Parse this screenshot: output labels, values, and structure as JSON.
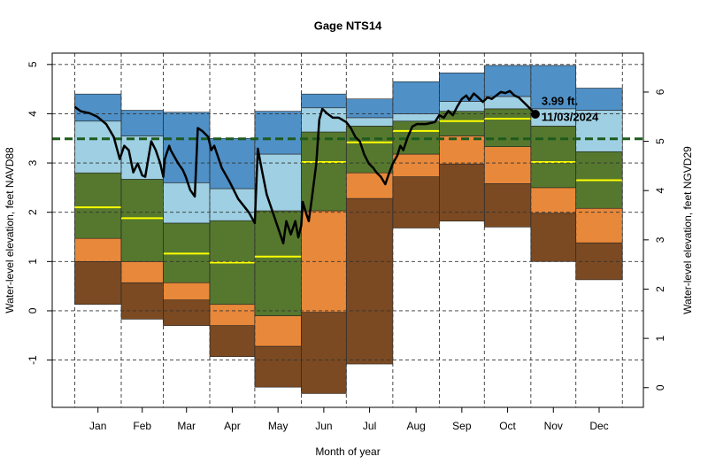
{
  "chart_data": {
    "type": "percentile-steps",
    "title": "Gage NTS14",
    "xlabel": "Month of year",
    "ylabel": "Water-level elevation, feet NAVD88",
    "y2label": "Water-level elevation, feet NGVD29",
    "categories": [
      "Jan",
      "Feb",
      "Mar",
      "Apr",
      "May",
      "Jun",
      "Jul",
      "Aug",
      "Sep",
      "Oct",
      "Nov",
      "Dec"
    ],
    "month_starts": [
      0,
      31,
      59,
      90,
      120,
      151,
      181,
      212,
      243,
      273,
      304,
      334,
      365
    ],
    "xlim": [
      -15,
      379
    ],
    "ylim": [
      -1.96,
      5.23
    ],
    "yticks": [
      -1,
      0,
      1,
      2,
      3,
      4,
      5
    ],
    "y2lim": [
      -0.4,
      6.79
    ],
    "y2ticks": [
      0,
      1,
      2,
      3,
      4,
      5,
      6
    ],
    "grid": true,
    "percentiles": {
      "min": [
        0.13,
        -0.17,
        -0.3,
        -0.93,
        -1.55,
        -1.68,
        -1.08,
        1.68,
        1.82,
        1.7,
        1.0,
        0.63
      ],
      "p10": [
        1.0,
        0.57,
        0.22,
        -0.3,
        -0.72,
        -0.03,
        2.28,
        2.72,
        2.98,
        2.58,
        1.98,
        1.38
      ],
      "p25": [
        1.47,
        1.0,
        0.57,
        0.13,
        -0.1,
        2.03,
        2.8,
        3.18,
        3.55,
        3.33,
        2.5,
        2.08
      ],
      "median": [
        2.1,
        1.88,
        1.16,
        0.98,
        1.1,
        3.02,
        3.42,
        3.65,
        3.85,
        3.9,
        3.02,
        2.65
      ],
      "p75": [
        2.8,
        2.67,
        1.78,
        1.83,
        2.03,
        3.63,
        3.75,
        3.85,
        4.05,
        4.1,
        3.75,
        3.23
      ],
      "p90": [
        3.85,
        3.55,
        2.6,
        2.48,
        3.18,
        4.12,
        3.92,
        4.0,
        4.25,
        4.35,
        4.1,
        4.07
      ],
      "max": [
        4.4,
        4.07,
        4.03,
        3.5,
        4.05,
        4.4,
        4.3,
        4.65,
        4.83,
        4.98,
        4.98,
        4.52
      ]
    },
    "band_colors": [
      "#7b4a22",
      "#e8883a",
      "#55782e",
      "#55782e",
      "#9ecfe2",
      "#4f90c6"
    ],
    "median_color": "#ffff00",
    "reference_line": 3.49,
    "reference_color": "#1e5a1e",
    "line": {
      "color": "#000000",
      "x": [
        0,
        4,
        10,
        15,
        21,
        26,
        30,
        33,
        36,
        39,
        42,
        45,
        47,
        49,
        51,
        54,
        57,
        59,
        60,
        63,
        64,
        69,
        72,
        74,
        77,
        80,
        82,
        85,
        89,
        91,
        93,
        95,
        98,
        103,
        109,
        116,
        120,
        122,
        125,
        128,
        132,
        135,
        139,
        141,
        144,
        147,
        149,
        151,
        152,
        154,
        156,
        158,
        161,
        163,
        165,
        168,
        172,
        176,
        181,
        184,
        187,
        190,
        193,
        196,
        199,
        201,
        204,
        207,
        209,
        212,
        215,
        217,
        219,
        222,
        225,
        228,
        234,
        240,
        243,
        246,
        249,
        252,
        255,
        258,
        261,
        263,
        266,
        269,
        272,
        275,
        278,
        281,
        284,
        287,
        290,
        293,
        296,
        299,
        305,
        307
      ],
      "values": [
        4.14,
        4.05,
        4.01,
        3.94,
        3.79,
        3.53,
        3.08,
        3.35,
        3.26,
        2.81,
        2.99,
        2.75,
        2.72,
        3.08,
        3.44,
        3.26,
        2.99,
        2.72,
        3.08,
        3.35,
        3.26,
        2.99,
        2.86,
        2.72,
        2.45,
        2.32,
        3.71,
        3.65,
        3.53,
        3.26,
        3.35,
        3.17,
        2.9,
        2.63,
        2.27,
        2.0,
        1.78,
        3.29,
        2.81,
        2.36,
        2.0,
        1.73,
        1.37,
        1.82,
        1.55,
        1.82,
        1.49,
        1.73,
        2.21,
        2.0,
        1.82,
        2.27,
        2.99,
        3.88,
        4.1,
        4.01,
        3.92,
        3.92,
        3.83,
        3.71,
        3.53,
        3.44,
        3.17,
        2.99,
        2.9,
        2.81,
        2.72,
        2.57,
        2.75,
        2.99,
        3.15,
        3.35,
        3.26,
        3.53,
        3.74,
        3.79,
        3.79,
        3.83,
        3.97,
        3.92,
        4.06,
        3.97,
        4.15,
        4.3,
        4.37,
        4.28,
        4.41,
        4.33,
        4.24,
        4.33,
        4.3,
        4.37,
        4.44,
        4.42,
        4.46,
        4.37,
        4.33,
        4.24,
        4.06,
        3.99
      ]
    },
    "point_label": "3.99 ft.",
    "date_label": "11/03/2024"
  }
}
